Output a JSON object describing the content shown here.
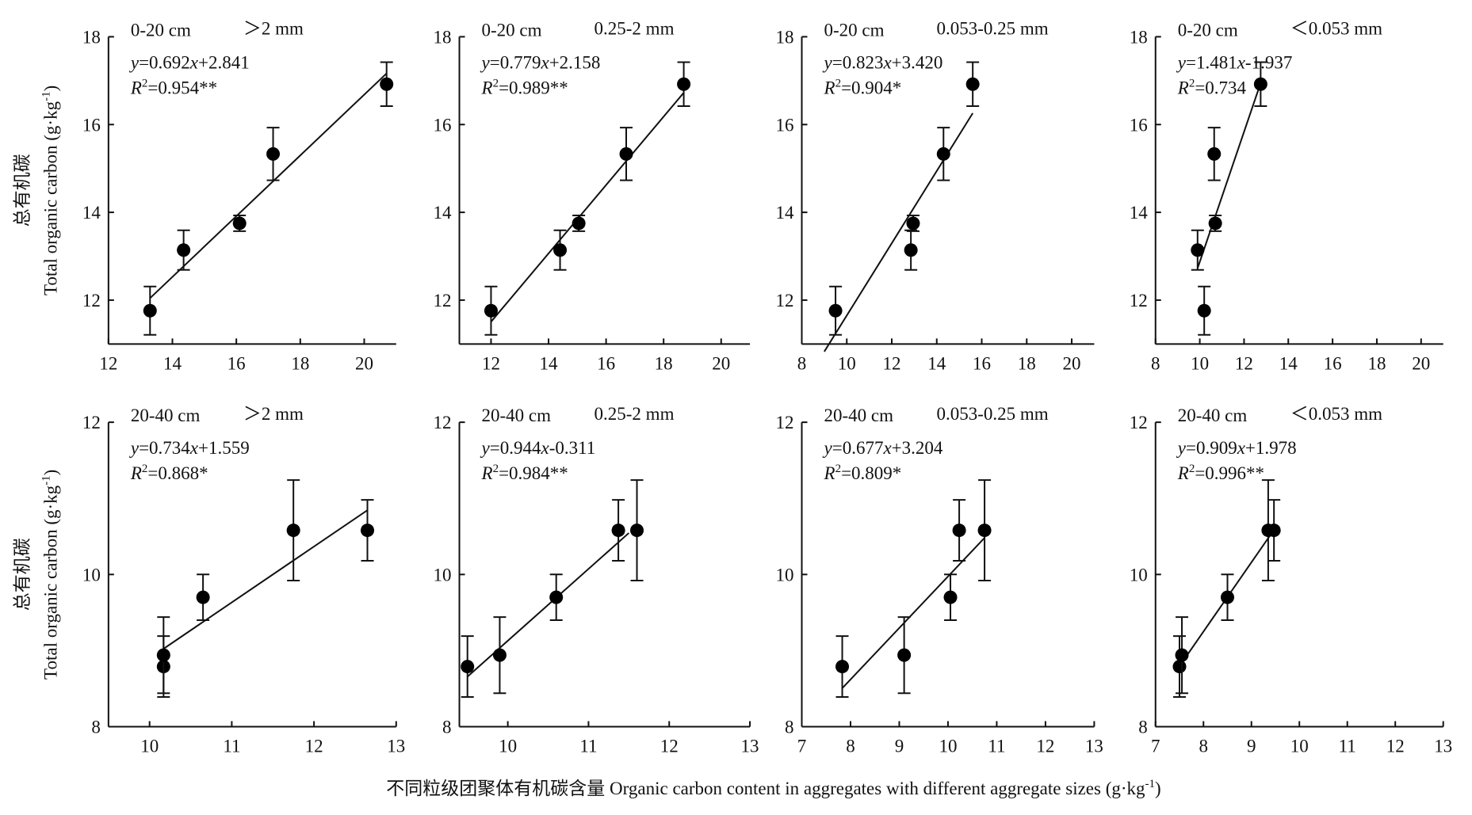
{
  "figure": {
    "xlabel": "不同粒级团聚体有机碳含量 Organic carbon content in aggregates with different aggregate sizes (g·kg-1)"
  },
  "chart_data": [
    {
      "type": "scatter",
      "depth": "0-20 cm",
      "size_class": "＞2 mm",
      "equation": "y=0.692x+2.841",
      "r2": "R2=0.954**",
      "ylabel_cn": "总有机碳",
      "ylabel": "Total organic carbon (g·kg-1)",
      "x": [
        13.3,
        14.35,
        16.1,
        17.15,
        20.7
      ],
      "values": [
        11.76,
        13.14,
        13.75,
        15.33,
        16.92
      ],
      "errors": [
        0.55,
        0.45,
        0.18,
        0.6,
        0.5
      ],
      "fit": {
        "slope": 0.692,
        "intercept": 2.841,
        "x": [
          13.3,
          20.7
        ]
      },
      "xlim": [
        12,
        21
      ],
      "ylim": [
        11,
        18
      ],
      "xticks": [
        12,
        14,
        16,
        18,
        20
      ],
      "yticks": [
        12,
        14,
        16,
        18
      ],
      "color": "#000000"
    },
    {
      "type": "scatter",
      "depth": "0-20 cm",
      "size_class": "0.25-2 mm",
      "equation": "y=0.779x+2.158",
      "r2": "R2=0.989**",
      "x": [
        12.0,
        14.4,
        15.05,
        16.7,
        18.7
      ],
      "values": [
        11.76,
        13.14,
        13.75,
        15.33,
        16.92
      ],
      "errors": [
        0.55,
        0.45,
        0.18,
        0.6,
        0.5
      ],
      "fit": {
        "slope": 0.779,
        "intercept": 2.158,
        "x": [
          12.0,
          18.7
        ]
      },
      "xlim": [
        10.9,
        21
      ],
      "ylim": [
        11,
        18
      ],
      "xticks": [
        12,
        14,
        16,
        18,
        20
      ],
      "yticks": [
        12,
        14,
        16,
        18
      ],
      "color": "#000000"
    },
    {
      "type": "scatter",
      "depth": "0-20 cm",
      "size_class": "0.053-0.25 mm",
      "equation": "y=0.823x+3.420",
      "r2": "R2=0.904*",
      "x": [
        9.5,
        12.85,
        12.95,
        14.3,
        15.6
      ],
      "values": [
        11.76,
        13.14,
        13.75,
        15.33,
        16.92
      ],
      "errors": [
        0.55,
        0.45,
        0.18,
        0.6,
        0.5
      ],
      "fit": {
        "slope": 0.823,
        "intercept": 3.42,
        "x": [
          9.0,
          15.6
        ]
      },
      "xlim": [
        8,
        21
      ],
      "ylim": [
        11,
        18
      ],
      "xticks": [
        8,
        10,
        12,
        14,
        16,
        18,
        20
      ],
      "yticks": [
        12,
        14,
        16,
        18
      ],
      "color": "#000000"
    },
    {
      "type": "scatter",
      "depth": "0-20 cm",
      "size_class": "＜0.053 mm",
      "equation": "y=1.481x-1.937",
      "r2": "R2=0.734",
      "x": [
        10.2,
        9.9,
        10.7,
        10.65,
        12.75
      ],
      "values": [
        11.76,
        13.14,
        13.75,
        15.33,
        16.92
      ],
      "errors": [
        0.55,
        0.45,
        0.18,
        0.6,
        0.5
      ],
      "fit": {
        "slope": 1.481,
        "intercept": -1.937,
        "x": [
          9.9,
          12.8
        ]
      },
      "xlim": [
        8,
        21
      ],
      "ylim": [
        11,
        18
      ],
      "xticks": [
        8,
        10,
        12,
        14,
        16,
        18,
        20
      ],
      "yticks": [
        12,
        14,
        16,
        18
      ],
      "color": "#000000"
    },
    {
      "type": "scatter",
      "depth": "20-40 cm",
      "size_class": "＞2 mm",
      "equation": "y=0.734x+1.559",
      "r2": "R2=0.868*",
      "ylabel_cn": "总有机碳",
      "ylabel": "Total organic carbon (g·kg-1)",
      "x": [
        10.17,
        10.17,
        10.65,
        11.75,
        12.65
      ],
      "values": [
        8.79,
        8.94,
        9.7,
        10.58,
        10.58
      ],
      "errors": [
        0.4,
        0.5,
        0.3,
        0.66,
        0.4
      ],
      "fit": {
        "slope": 0.734,
        "intercept": 1.559,
        "x": [
          10.17,
          12.65
        ]
      },
      "xlim": [
        9.5,
        13
      ],
      "ylim": [
        8,
        12
      ],
      "xticks": [
        10,
        11,
        12,
        13
      ],
      "yticks": [
        8,
        10,
        12
      ],
      "color": "#000000"
    },
    {
      "type": "scatter",
      "depth": "20-40 cm",
      "size_class": "0.25-2 mm",
      "equation": "y=0.944x-0.311",
      "r2": "R2=0.984**",
      "x": [
        9.5,
        9.9,
        10.6,
        11.37,
        11.6
      ],
      "values": [
        8.79,
        8.94,
        9.7,
        10.58,
        10.58
      ],
      "errors": [
        0.4,
        0.5,
        0.3,
        0.4,
        0.66
      ],
      "fit": {
        "slope": 0.944,
        "intercept": -0.311,
        "x": [
          9.5,
          11.5
        ]
      },
      "xlim": [
        9.4,
        13
      ],
      "ylim": [
        8,
        12
      ],
      "xticks": [
        10,
        11,
        12,
        13
      ],
      "yticks": [
        8,
        10,
        12
      ],
      "color": "#000000"
    },
    {
      "type": "scatter",
      "depth": "20-40 cm",
      "size_class": "0.053-0.25 mm",
      "equation": "y=0.677x+3.204",
      "r2": "R2=0.809*",
      "x": [
        7.83,
        9.1,
        10.05,
        10.23,
        10.75
      ],
      "values": [
        8.79,
        8.94,
        9.7,
        10.58,
        10.58
      ],
      "errors": [
        0.4,
        0.5,
        0.3,
        0.4,
        0.66
      ],
      "fit": {
        "slope": 0.677,
        "intercept": 3.204,
        "x": [
          7.83,
          10.75
        ]
      },
      "xlim": [
        7,
        13
      ],
      "ylim": [
        8,
        12
      ],
      "xticks": [
        7,
        8,
        9,
        10,
        11,
        12,
        13
      ],
      "yticks": [
        8,
        10,
        12
      ],
      "color": "#000000"
    },
    {
      "type": "scatter",
      "depth": "20-40 cm",
      "size_class": "＜0.053 mm",
      "equation": "y=0.909x+1.978",
      "r2": "R2=0.996**",
      "x": [
        7.5,
        7.55,
        8.5,
        9.35,
        9.47
      ],
      "values": [
        8.79,
        8.94,
        9.7,
        10.58,
        10.58
      ],
      "errors": [
        0.4,
        0.5,
        0.3,
        0.66,
        0.4
      ],
      "fit": {
        "slope": 0.909,
        "intercept": 1.978,
        "x": [
          7.5,
          9.4
        ]
      },
      "xlim": [
        7,
        13
      ],
      "ylim": [
        8,
        12
      ],
      "xticks": [
        7,
        8,
        9,
        10,
        11,
        12,
        13
      ],
      "yticks": [
        8,
        10,
        12
      ],
      "color": "#000000"
    }
  ]
}
